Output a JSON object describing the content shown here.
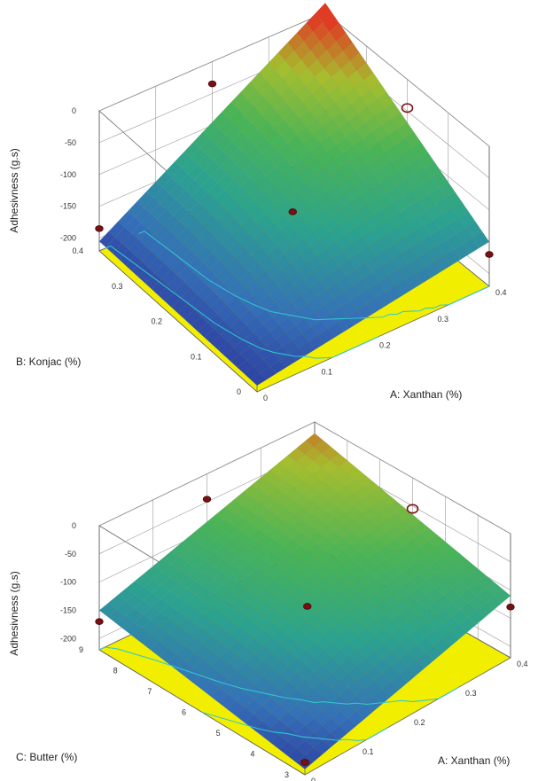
{
  "chart_data": [
    {
      "type": "surface",
      "zlabel": "Adhesivness (g.s)",
      "xlabel": "A: Xanthan (%)",
      "ylabel": "B: Konjac (%)",
      "x_ticks": [
        "0",
        "0.1",
        "0.2",
        "0.3",
        "0.4"
      ],
      "y_ticks": [
        "0",
        "0.1",
        "0.2",
        "0.3",
        "0.4"
      ],
      "z_ticks": [
        "0",
        "-50",
        "-100",
        "-150",
        "-200"
      ],
      "xlim": [
        0,
        0.4
      ],
      "ylim": [
        0,
        0.4
      ],
      "zlim": [
        -220,
        0
      ],
      "surface_corners": {
        "x0_y0": -210,
        "x1_y0": -150,
        "x0_y1": -205,
        "x1_y1": 15
      },
      "points": [
        {
          "x": 0,
          "y": 0.4,
          "z": -185,
          "open": false
        },
        {
          "x": 0.2,
          "y": 0.2,
          "z": -128,
          "open": false
        },
        {
          "x": 0.4,
          "y": 0,
          "z": -170,
          "open": false
        },
        {
          "x": 0.2,
          "y": 0.4,
          "z": -35,
          "open": false
        },
        {
          "x": 0.4,
          "y": 0.2,
          "z": -45,
          "open": true
        }
      ]
    },
    {
      "type": "surface",
      "zlabel": "Adhesivness (g.s)",
      "xlabel": "A: Xanthan (%)",
      "ylabel": "C: Butter (%)",
      "x_ticks": [
        "0",
        "0.1",
        "0.2",
        "0.3",
        "0.4"
      ],
      "y_ticks": [
        "3",
        "4",
        "5",
        "6",
        "7",
        "8",
        "9"
      ],
      "z_ticks": [
        "0",
        "-50",
        "-100",
        "-150",
        "-200"
      ],
      "xlim": [
        0,
        0.4
      ],
      "ylim": [
        3,
        9
      ],
      "zlim": [
        -220,
        0
      ],
      "surface_corners": {
        "x0_y0": -210,
        "x1_y0": -110,
        "x0_y1": -150,
        "x1_y1": -20
      },
      "points": [
        {
          "x": 0,
          "y": 3,
          "z": -198,
          "open": false
        },
        {
          "x": 0,
          "y": 9,
          "z": -170,
          "open": false
        },
        {
          "x": 0.2,
          "y": 6,
          "z": -130,
          "open": false
        },
        {
          "x": 0.4,
          "y": 3,
          "z": -130,
          "open": false
        },
        {
          "x": 0.2,
          "y": 9,
          "z": -45,
          "open": false
        },
        {
          "x": 0.4,
          "y": 6,
          "z": -55,
          "open": true
        }
      ]
    }
  ]
}
